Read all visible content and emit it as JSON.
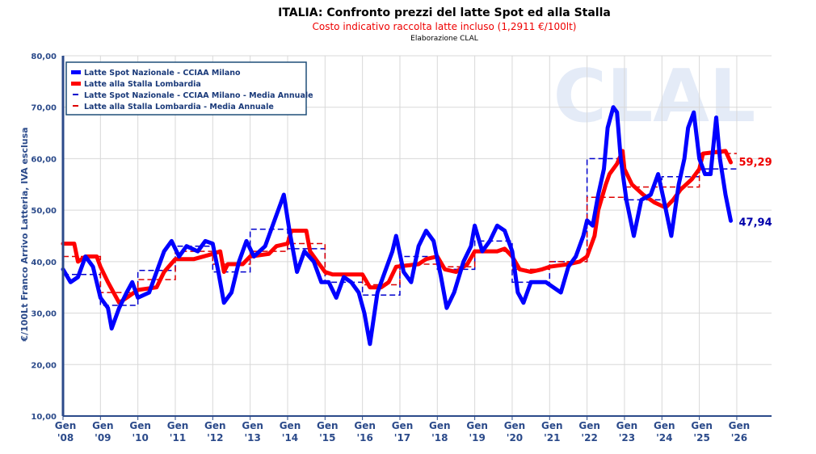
{
  "chart_data": {
    "type": "line",
    "title": "ITALIA: Confronto prezzi del latte Spot ed alla Stalla",
    "subtitle": "Costo indicativo raccolta latte incluso (1,2911 €/100lt)",
    "source_note": "Elaborazione CLAL",
    "watermark": "CLAL",
    "ylabel": "€/100Lt Franco Arrivo Latteria, IVA esclusa",
    "ylim": [
      10,
      80
    ],
    "yticks": [
      "10,00",
      "20,00",
      "30,00",
      "40,00",
      "50,00",
      "60,00",
      "70,00",
      "80,00"
    ],
    "xlim": [
      2008,
      2026.9
    ],
    "xticks": [
      {
        "m": "Gen",
        "y": "'08"
      },
      {
        "m": "Gen",
        "y": "'09"
      },
      {
        "m": "Gen",
        "y": "'10"
      },
      {
        "m": "Gen",
        "y": "'11"
      },
      {
        "m": "Gen",
        "y": "'12"
      },
      {
        "m": "Gen",
        "y": "'13"
      },
      {
        "m": "Gen",
        "y": "'14"
      },
      {
        "m": "Gen",
        "y": "'15"
      },
      {
        "m": "Gen",
        "y": "'16"
      },
      {
        "m": "Gen",
        "y": "'17"
      },
      {
        "m": "Gen",
        "y": "'18"
      },
      {
        "m": "Gen",
        "y": "'19"
      },
      {
        "m": "Gen",
        "y": "'20"
      },
      {
        "m": "Gen",
        "y": "'21"
      },
      {
        "m": "Gen",
        "y": "'22"
      },
      {
        "m": "Gen",
        "y": "'23"
      },
      {
        "m": "Gen",
        "y": "'24"
      },
      {
        "m": "Gen",
        "y": "'25"
      },
      {
        "m": "Gen",
        "y": "'26"
      }
    ],
    "legend_position": "top-left",
    "series": [
      {
        "name": "Latte Spot Nazionale - CCIAA Milano",
        "color": "#0000ff",
        "style": "solid",
        "last_label": "47,94",
        "points": [
          [
            2008,
            38.5
          ],
          [
            2008.2,
            36
          ],
          [
            2008.4,
            37
          ],
          [
            2008.6,
            41
          ],
          [
            2008.8,
            39
          ],
          [
            2009,
            33
          ],
          [
            2009.2,
            31
          ],
          [
            2009.3,
            27
          ],
          [
            2009.5,
            31
          ],
          [
            2009.7,
            34
          ],
          [
            2009.85,
            36
          ],
          [
            2010,
            33
          ],
          [
            2010.3,
            34
          ],
          [
            2010.5,
            38
          ],
          [
            2010.7,
            42
          ],
          [
            2010.9,
            44
          ],
          [
            2011.1,
            41
          ],
          [
            2011.3,
            43
          ],
          [
            2011.6,
            42
          ],
          [
            2011.8,
            44
          ],
          [
            2012,
            43.5
          ],
          [
            2012.15,
            38
          ],
          [
            2012.3,
            32
          ],
          [
            2012.5,
            34
          ],
          [
            2012.7,
            40
          ],
          [
            2012.9,
            44
          ],
          [
            2013.1,
            41
          ],
          [
            2013.4,
            43
          ],
          [
            2013.6,
            47
          ],
          [
            2013.8,
            51
          ],
          [
            2013.9,
            53
          ],
          [
            2014.05,
            46
          ],
          [
            2014.25,
            38
          ],
          [
            2014.45,
            42
          ],
          [
            2014.7,
            40
          ],
          [
            2014.9,
            36
          ],
          [
            2015.1,
            36
          ],
          [
            2015.3,
            33
          ],
          [
            2015.5,
            37
          ],
          [
            2015.7,
            36
          ],
          [
            2015.9,
            34
          ],
          [
            2016.05,
            30
          ],
          [
            2016.2,
            24
          ],
          [
            2016.4,
            34
          ],
          [
            2016.6,
            38
          ],
          [
            2016.8,
            42
          ],
          [
            2016.9,
            45
          ],
          [
            2017.1,
            38
          ],
          [
            2017.3,
            36
          ],
          [
            2017.5,
            43
          ],
          [
            2017.7,
            46
          ],
          [
            2017.9,
            44
          ],
          [
            2018.1,
            37
          ],
          [
            2018.25,
            31
          ],
          [
            2018.45,
            34
          ],
          [
            2018.7,
            40
          ],
          [
            2018.9,
            43
          ],
          [
            2019,
            47
          ],
          [
            2019.2,
            42
          ],
          [
            2019.4,
            44
          ],
          [
            2019.6,
            47
          ],
          [
            2019.8,
            46
          ],
          [
            2020,
            42
          ],
          [
            2020.15,
            34
          ],
          [
            2020.3,
            32
          ],
          [
            2020.5,
            36
          ],
          [
            2020.7,
            36
          ],
          [
            2020.9,
            36
          ],
          [
            2021.1,
            35
          ],
          [
            2021.3,
            34
          ],
          [
            2021.5,
            39
          ],
          [
            2021.7,
            41
          ],
          [
            2021.9,
            45
          ],
          [
            2022,
            48
          ],
          [
            2022.15,
            47
          ],
          [
            2022.3,
            53
          ],
          [
            2022.45,
            58
          ],
          [
            2022.55,
            66
          ],
          [
            2022.7,
            70
          ],
          [
            2022.8,
            69
          ],
          [
            2022.9,
            60
          ],
          [
            2023.05,
            52
          ],
          [
            2023.25,
            45
          ],
          [
            2023.45,
            52
          ],
          [
            2023.7,
            53
          ],
          [
            2023.9,
            57
          ],
          [
            2024.05,
            52
          ],
          [
            2024.25,
            45
          ],
          [
            2024.45,
            55
          ],
          [
            2024.6,
            60
          ],
          [
            2024.7,
            66
          ],
          [
            2024.85,
            69
          ],
          [
            2025,
            60
          ],
          [
            2025.15,
            57
          ],
          [
            2025.3,
            57
          ],
          [
            2025.45,
            68
          ],
          [
            2025.55,
            60
          ],
          [
            2025.7,
            53
          ],
          [
            2025.84,
            47.94
          ]
        ]
      },
      {
        "name": "Latte alla Stalla Lombardia",
        "color": "#ff0000",
        "style": "solid",
        "last_label": "59,29",
        "points": [
          [
            2008,
            43.5
          ],
          [
            2008.3,
            43.5
          ],
          [
            2008.4,
            40
          ],
          [
            2008.6,
            41
          ],
          [
            2008.9,
            41
          ],
          [
            2009,
            39
          ],
          [
            2009.2,
            36
          ],
          [
            2009.5,
            32
          ],
          [
            2009.7,
            33
          ],
          [
            2010,
            34.5
          ],
          [
            2010.5,
            35
          ],
          [
            2010.7,
            38
          ],
          [
            2011,
            40.5
          ],
          [
            2011.5,
            40.5
          ],
          [
            2012,
            41.5
          ],
          [
            2012.2,
            42
          ],
          [
            2012.3,
            38
          ],
          [
            2012.4,
            39.5
          ],
          [
            2012.8,
            39.5
          ],
          [
            2013,
            41
          ],
          [
            2013.5,
            41.5
          ],
          [
            2013.7,
            43
          ],
          [
            2014,
            43.5
          ],
          [
            2014.1,
            46
          ],
          [
            2014.5,
            46
          ],
          [
            2014.6,
            42
          ],
          [
            2014.8,
            40
          ],
          [
            2015,
            38
          ],
          [
            2015.2,
            37.5
          ],
          [
            2016,
            37.5
          ],
          [
            2016.2,
            35
          ],
          [
            2016.5,
            35
          ],
          [
            2016.7,
            36
          ],
          [
            2016.9,
            39
          ],
          [
            2017.5,
            39.5
          ],
          [
            2017.7,
            40.5
          ],
          [
            2018,
            41
          ],
          [
            2018.2,
            38.5
          ],
          [
            2018.5,
            38
          ],
          [
            2018.8,
            39.5
          ],
          [
            2019,
            42
          ],
          [
            2019.6,
            42
          ],
          [
            2019.8,
            42.5
          ],
          [
            2020,
            41
          ],
          [
            2020.2,
            38.5
          ],
          [
            2020.5,
            38
          ],
          [
            2020.8,
            38.5
          ],
          [
            2021,
            39
          ],
          [
            2021.5,
            39.5
          ],
          [
            2021.8,
            40
          ],
          [
            2022,
            41
          ],
          [
            2022.2,
            45
          ],
          [
            2022.3,
            50
          ],
          [
            2022.5,
            55
          ],
          [
            2022.6,
            57
          ],
          [
            2022.8,
            59
          ],
          [
            2022.95,
            61.5
          ],
          [
            2023,
            58
          ],
          [
            2023.2,
            55
          ],
          [
            2023.5,
            53
          ],
          [
            2023.8,
            51.5
          ],
          [
            2024.1,
            50.5
          ],
          [
            2024.3,
            52
          ],
          [
            2024.5,
            54
          ],
          [
            2024.8,
            56
          ],
          [
            2025,
            58
          ],
          [
            2025.1,
            61
          ],
          [
            2025.7,
            61.5
          ],
          [
            2025.84,
            59.29
          ]
        ]
      },
      {
        "name": "Latte Spot Nazionale - CCIAA Milano - Media Annuale",
        "color": "#0000cc",
        "style": "dashed",
        "annual": [
          37.5,
          31.5,
          38.3,
          43,
          38,
          46.3,
          42.5,
          36,
          33.5,
          41,
          38.5,
          44,
          36,
          40,
          60,
          52,
          56.5,
          58
        ]
      },
      {
        "name": "Latte alla Stalla Lombardia - Media Annuale",
        "color": "#dd0000",
        "style": "dashed",
        "annual": [
          41,
          34,
          36.5,
          42,
          39.5,
          42,
          43.5,
          37.5,
          35.5,
          39.5,
          39,
          42,
          38.5,
          40,
          52.5,
          54.5,
          54.5,
          61
        ]
      }
    ]
  }
}
